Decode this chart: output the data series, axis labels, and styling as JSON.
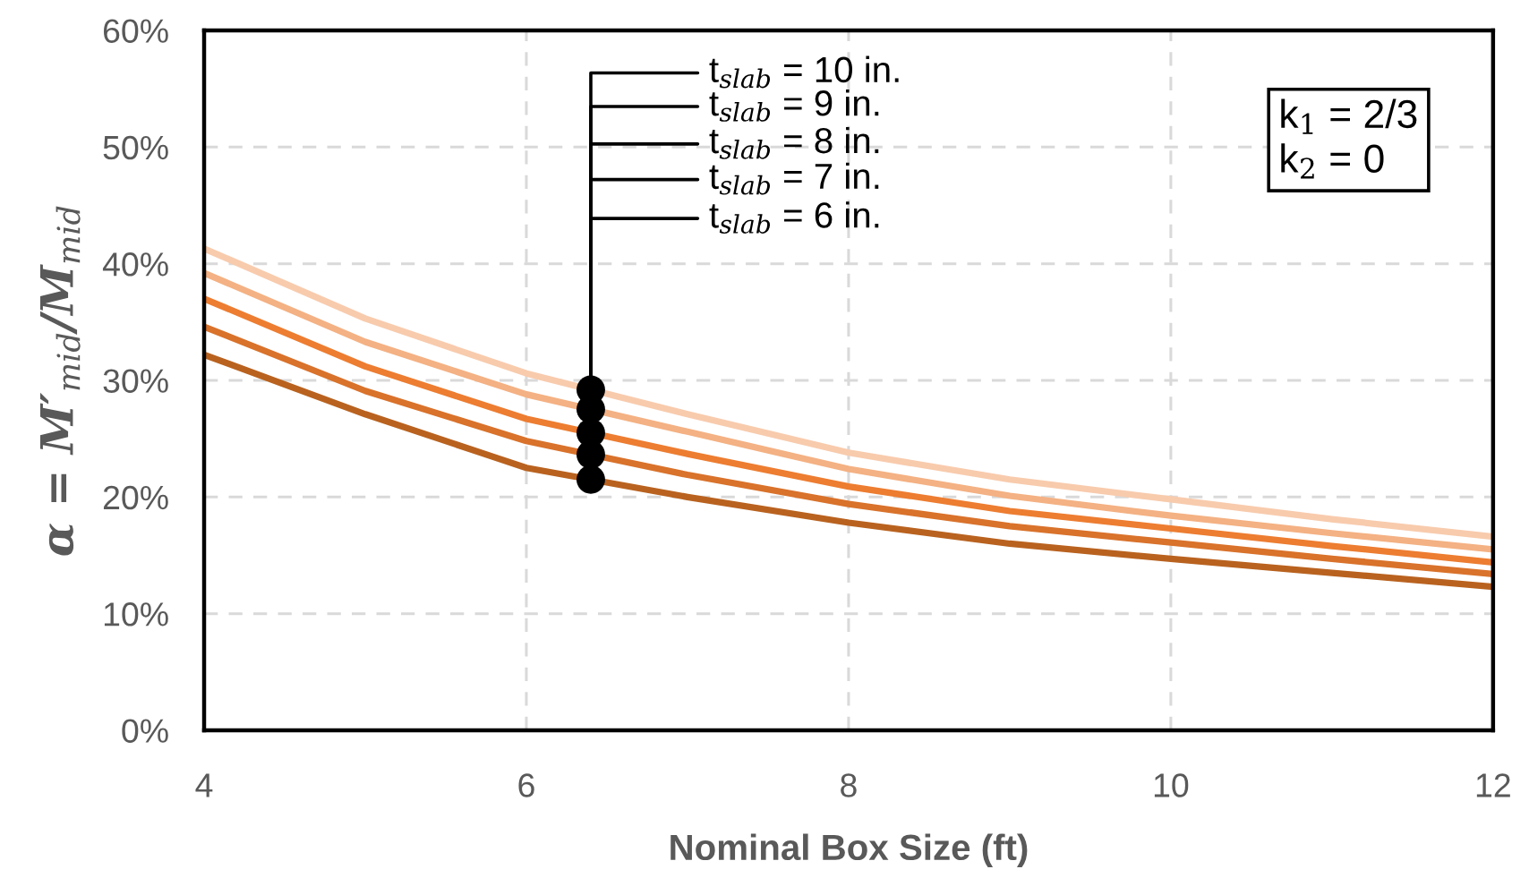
{
  "chart_data": {
    "type": "line",
    "xlabel": "Nominal Box Size (ft)",
    "ylabel": "α = M′$_{mid}$/M$_{mid}$",
    "x": [
      4,
      5,
      6,
      7,
      8,
      9,
      10,
      11,
      12
    ],
    "series": [
      {
        "name": "t$_{slab}$ = 10 in.",
        "color": "#f8cbad",
        "values": [
          41.3,
          35.3,
          30.6,
          27.1,
          23.8,
          21.5,
          19.8,
          18.1,
          16.6
        ]
      },
      {
        "name": "t$_{slab}$ = 9 in.",
        "color": "#f4b183",
        "values": [
          39.2,
          33.3,
          28.8,
          25.6,
          22.4,
          20.1,
          18.4,
          16.9,
          15.5
        ]
      },
      {
        "name": "t$_{slab}$ = 8 in.",
        "color": "#ed7d31",
        "values": [
          37.0,
          31.2,
          26.7,
          23.7,
          20.9,
          18.8,
          17.3,
          15.8,
          14.4
        ]
      },
      {
        "name": "t$_{slab}$ = 7 in.",
        "color": "#d9722b",
        "values": [
          34.6,
          29.1,
          24.8,
          21.9,
          19.4,
          17.5,
          16.1,
          14.7,
          13.4
        ]
      },
      {
        "name": "t$_{slab}$ = 6 in.",
        "color": "#b9621f",
        "values": [
          32.2,
          27.1,
          22.5,
          20.0,
          17.8,
          16.0,
          14.7,
          13.5,
          12.3
        ]
      }
    ],
    "xlim": [
      4,
      12
    ],
    "xticks": [
      4,
      6,
      8,
      10,
      12
    ],
    "ylim": [
      0,
      60
    ],
    "yticks": [
      {
        "value": 0,
        "label": "0%"
      },
      {
        "value": 10,
        "label": "10%"
      },
      {
        "value": 20,
        "label": "20%"
      },
      {
        "value": 30,
        "label": "30%"
      },
      {
        "value": 40,
        "label": "40%"
      },
      {
        "value": 50,
        "label": "50%"
      },
      {
        "value": 60,
        "label": "60%"
      }
    ],
    "grid": true,
    "annotations": [
      "k$_{1}$ = 2/3",
      "k$_{2}$ = 0"
    ]
  }
}
